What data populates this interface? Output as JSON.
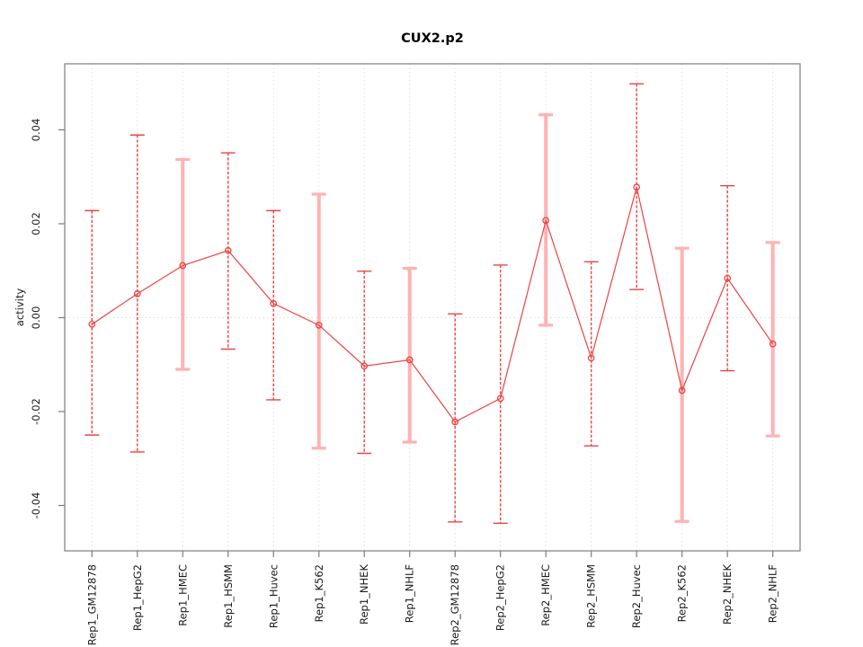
{
  "chart_data": {
    "type": "line",
    "title": "CUX2.p2",
    "ylabel": "activity",
    "xlabel": "",
    "legend": "none",
    "grid": "vertical dotted gridline per category; dotted horizontal line at y=0",
    "ylim": [
      -0.0497,
      0.0541
    ],
    "y_ticks": [
      0.04,
      0.02,
      0,
      -0.02,
      -0.04
    ],
    "y_tick_labels": [
      "0.04",
      "0.02",
      "0.00",
      "-0.02",
      "-0.04"
    ],
    "categories": [
      "Rep1_GM12878",
      "Rep1_HepG2",
      "Rep1_HMEC",
      "Rep1_HSMM",
      "Rep1_Huvec",
      "Rep1_K562",
      "Rep1_NHEK",
      "Rep1_NHLF",
      "Rep2_GM12878",
      "Rep2_HepG2",
      "Rep2_HMEC",
      "Rep2_HSMM",
      "Rep2_Huvec",
      "Rep2_K562",
      "Rep2_NHEK",
      "Rep2_NHLF"
    ],
    "points": [
      {
        "label": "Rep1_GM12878",
        "value": -0.0014,
        "lo": -0.025,
        "hi": 0.0228,
        "light_bar": false
      },
      {
        "label": "Rep1_HepG2",
        "value": 0.0051,
        "lo": -0.0286,
        "hi": 0.0389,
        "light_bar": false
      },
      {
        "label": "Rep1_HMEC",
        "value": 0.0111,
        "lo": -0.011,
        "hi": 0.0337,
        "light_bar": true
      },
      {
        "label": "Rep1_HSMM",
        "value": 0.0143,
        "lo": -0.0067,
        "hi": 0.0351,
        "light_bar": false
      },
      {
        "label": "Rep1_Huvec",
        "value": 0.003,
        "lo": -0.0175,
        "hi": 0.0228,
        "light_bar": false
      },
      {
        "label": "Rep1_K562",
        "value": -0.0016,
        "lo": -0.0278,
        "hi": 0.0263,
        "light_bar": true
      },
      {
        "label": "Rep1_NHEK",
        "value": -0.0103,
        "lo": -0.0289,
        "hi": 0.0099,
        "light_bar": false
      },
      {
        "label": "Rep1_NHLF",
        "value": -0.009,
        "lo": -0.0265,
        "hi": 0.0105,
        "light_bar": true
      },
      {
        "label": "Rep2_GM12878",
        "value": -0.0222,
        "lo": -0.0435,
        "hi": 0.0008,
        "light_bar": false
      },
      {
        "label": "Rep2_HepG2",
        "value": -0.0172,
        "lo": -0.0438,
        "hi": 0.0112,
        "light_bar": false
      },
      {
        "label": "Rep2_HMEC",
        "value": 0.0207,
        "lo": -0.0016,
        "hi": 0.0432,
        "light_bar": true
      },
      {
        "label": "Rep2_HSMM",
        "value": -0.0086,
        "lo": -0.0273,
        "hi": 0.0119,
        "light_bar": false
      },
      {
        "label": "Rep2_Huvec",
        "value": 0.0278,
        "lo": 0.006,
        "hi": 0.0498,
        "light_bar": false
      },
      {
        "label": "Rep2_K562",
        "value": -0.0155,
        "lo": -0.0434,
        "hi": 0.0148,
        "light_bar": true
      },
      {
        "label": "Rep2_NHEK",
        "value": 0.0084,
        "lo": -0.0113,
        "hi": 0.0281,
        "light_bar": false
      },
      {
        "label": "Rep2_NHLF",
        "value": -0.0056,
        "lo": -0.0252,
        "hi": 0.016,
        "light_bar": true
      }
    ],
    "colors": {
      "line": "#ef4242",
      "point": "#ef4242",
      "error_bar": "#ef4242",
      "error_bar_light": "#ffb2b2",
      "grid": "#e0e0e0",
      "box": "#7d7d7d",
      "tick": "#7d7d7d",
      "text": "#1a1a1a",
      "background": "#ffffff"
    }
  }
}
